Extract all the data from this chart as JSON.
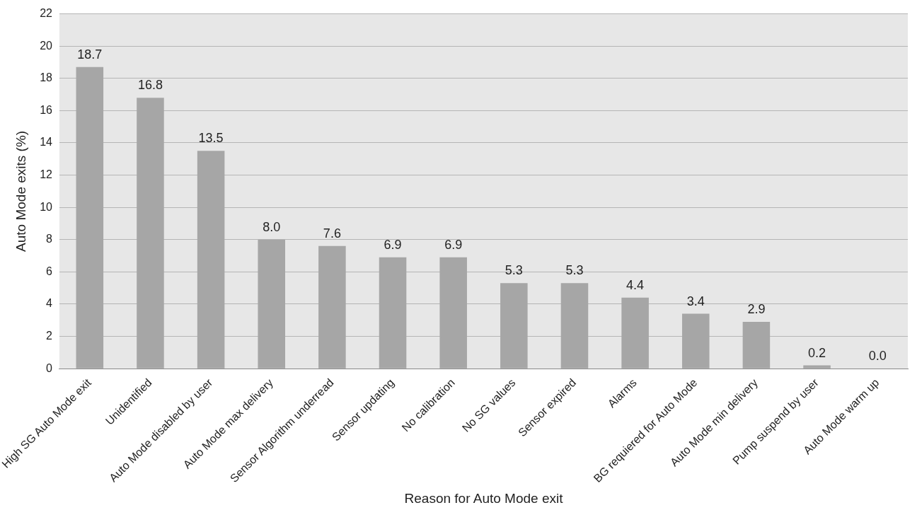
{
  "chart_data": {
    "type": "bar",
    "xlabel": "Reason for Auto Mode exit",
    "ylabel": "Auto Mode exits (%)",
    "categories": [
      "High SG Auto Mode exit",
      "Unidentified",
      "Auto Mode disabled by user",
      "Auto Mode max delivery",
      "Sensor Algorithm underread",
      "Sensor updating",
      "No calibration",
      "No SG values",
      "Sensor expired",
      "Alarms",
      "BG requiered for Auto Mode",
      "Auto Mode min delivery",
      "Pump suspend by user",
      "Auto Mode warm up"
    ],
    "values": [
      18.7,
      16.8,
      13.5,
      8.0,
      7.6,
      6.9,
      6.9,
      5.3,
      5.3,
      4.4,
      3.4,
      2.9,
      0.2,
      0.0
    ],
    "value_labels": [
      "18.7",
      "16.8",
      "13.5",
      "8.0",
      "7.6",
      "6.9",
      "6.9",
      "5.3",
      "5.3",
      "4.4",
      "3.4",
      "2.9",
      "0.2",
      "0.0"
    ],
    "color": "#a6a6a6",
    "ylim": [
      0,
      22
    ],
    "yticks": [
      0,
      2,
      4,
      6,
      8,
      10,
      12,
      14,
      16,
      18,
      20,
      22
    ],
    "grid": "y",
    "legend": false
  }
}
